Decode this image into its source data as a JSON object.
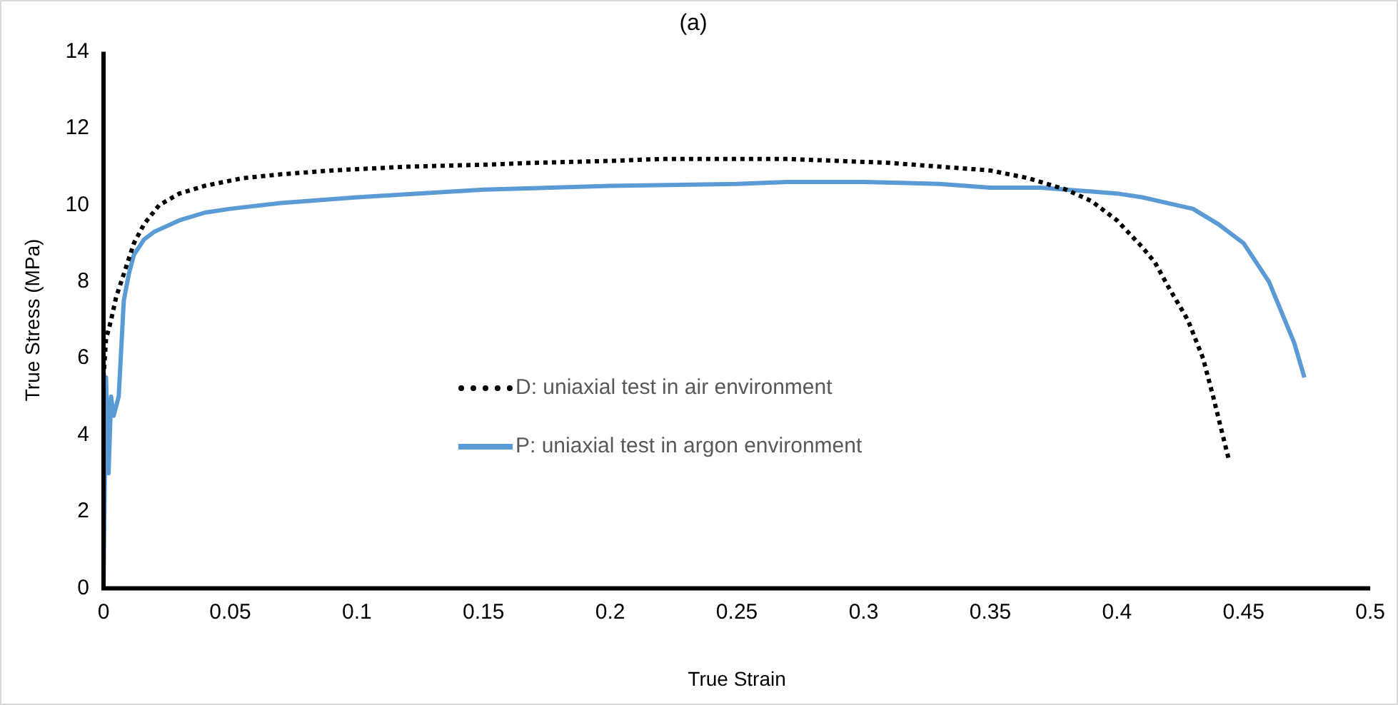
{
  "chart_data": {
    "type": "line",
    "title": "(a)",
    "xlabel": "True Strain",
    "ylabel": "True Stress (MPa)",
    "xlim": [
      0,
      0.5
    ],
    "xticks": [
      {
        "value": 0,
        "label": "0"
      },
      0.05,
      0.1,
      0.15,
      0.2,
      0.25,
      0.3,
      0.35,
      0.4,
      0.45,
      0.5
    ],
    "ylim": [
      0,
      14
    ],
    "yticks": [
      0,
      2,
      4,
      6,
      8,
      10,
      12,
      14
    ],
    "grid": false,
    "legend": "center",
    "marker": "none",
    "series": [
      {
        "name": "D: uniaxial test in air environment",
        "color": "#000000",
        "line_style": "dotted",
        "x": [
          0,
          0.001,
          0.003,
          0.005,
          0.007,
          0.01,
          0.012,
          0.016,
          0.022,
          0.03,
          0.04,
          0.055,
          0.07,
          0.09,
          0.12,
          0.15,
          0.17,
          0.2,
          0.22,
          0.25,
          0.27,
          0.29,
          0.31,
          0.33,
          0.35,
          0.365,
          0.38,
          0.39,
          0.4,
          0.41,
          0.415,
          0.42,
          0.428,
          0.434,
          0.438,
          0.441,
          0.444
        ],
        "values": [
          5.5,
          6.5,
          7.0,
          7.6,
          8.0,
          8.6,
          9.0,
          9.5,
          10.0,
          10.3,
          10.5,
          10.7,
          10.8,
          10.9,
          11.0,
          11.05,
          11.1,
          11.15,
          11.2,
          11.2,
          11.2,
          11.15,
          11.1,
          11.0,
          10.9,
          10.7,
          10.4,
          10.1,
          9.6,
          8.9,
          8.5,
          7.9,
          7.0,
          6.0,
          5.0,
          4.2,
          3.4
        ]
      },
      {
        "name": "P: uniaxial test in argon environment",
        "color": "#5b9bd5",
        "line_style": "solid",
        "x": [
          0,
          0.001,
          0.002,
          0.003,
          0.004,
          0.006,
          0.008,
          0.01,
          0.012,
          0.016,
          0.02,
          0.03,
          0.04,
          0.05,
          0.07,
          0.1,
          0.15,
          0.2,
          0.25,
          0.27,
          0.3,
          0.33,
          0.35,
          0.37,
          0.38,
          0.4,
          0.41,
          0.42,
          0.43,
          0.44,
          0.45,
          0.46,
          0.465,
          0.47,
          0.474
        ],
        "values": [
          0,
          5.5,
          3.0,
          5.0,
          4.5,
          5.0,
          7.5,
          8.2,
          8.7,
          9.1,
          9.3,
          9.6,
          9.8,
          9.9,
          10.05,
          10.2,
          10.4,
          10.5,
          10.55,
          10.6,
          10.6,
          10.55,
          10.45,
          10.45,
          10.4,
          10.3,
          10.2,
          10.05,
          9.9,
          9.5,
          9.0,
          8.0,
          7.2,
          6.4,
          5.5
        ]
      }
    ]
  }
}
